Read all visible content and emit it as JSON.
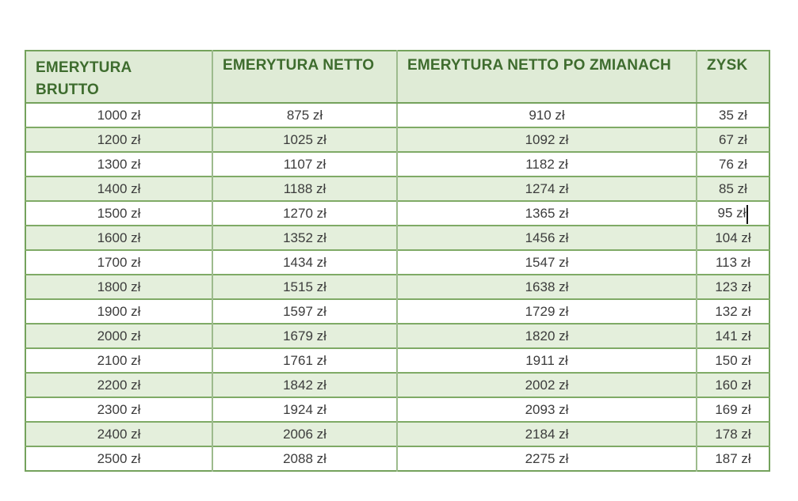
{
  "table": {
    "headers": [
      "EMERYTURA BRUTTO",
      "EMERYTURA NETTO",
      "EMERYTURA NETTO PO ZMIANACH",
      "ZYSK"
    ],
    "rows": [
      [
        "1000 zł",
        "875 zł",
        "910 zł",
        "35 zł"
      ],
      [
        "1200 zł",
        "1025 zł",
        "1092 zł",
        "67 zł"
      ],
      [
        "1300 zł",
        "1107 zł",
        "1182 zł",
        "76 zł"
      ],
      [
        "1400 zł",
        "1188 zł",
        "1274 zł",
        "85 zł"
      ],
      [
        "1500 zł",
        "1270 zł",
        "1365 zł",
        "95 zł"
      ],
      [
        "1600 zł",
        "1352 zł",
        "1456 zł",
        "104 zł"
      ],
      [
        "1700 zł",
        "1434 zł",
        "1547 zł",
        "113 zł"
      ],
      [
        "1800 zł",
        "1515 zł",
        "1638 zł",
        "123 zł"
      ],
      [
        "1900 zł",
        "1597 zł",
        "1729 zł",
        "132 zł"
      ],
      [
        "2000 zł",
        "1679 zł",
        "1820 zł",
        "141 zł"
      ],
      [
        "2100 zł",
        "1761 zł",
        "1911 zł",
        "150 zł"
      ],
      [
        "2200 zł",
        "1842 zł",
        "2002 zł",
        "160 zł"
      ],
      [
        "2300 zł",
        "1924 zł",
        "2093 zł",
        "169 zł"
      ],
      [
        "2400 zł",
        "2006 zł",
        "2184 zł",
        "178 zł"
      ],
      [
        "2500 zł",
        "2088 zł",
        "2275 zł",
        "187 zł"
      ]
    ]
  },
  "caret": {
    "row": 4,
    "col": 3
  },
  "colors": {
    "header_background": "#dfebd6",
    "header_text": "#3e6c2e",
    "row_alt_background": "#e4efdc",
    "row_background": "#ffffff",
    "border_outer": "#74a25c",
    "border_horizontal": "#7faa66",
    "border_vertical": "#9dbb8d",
    "body_text": "#3c3c3c",
    "caret": "#141414"
  }
}
